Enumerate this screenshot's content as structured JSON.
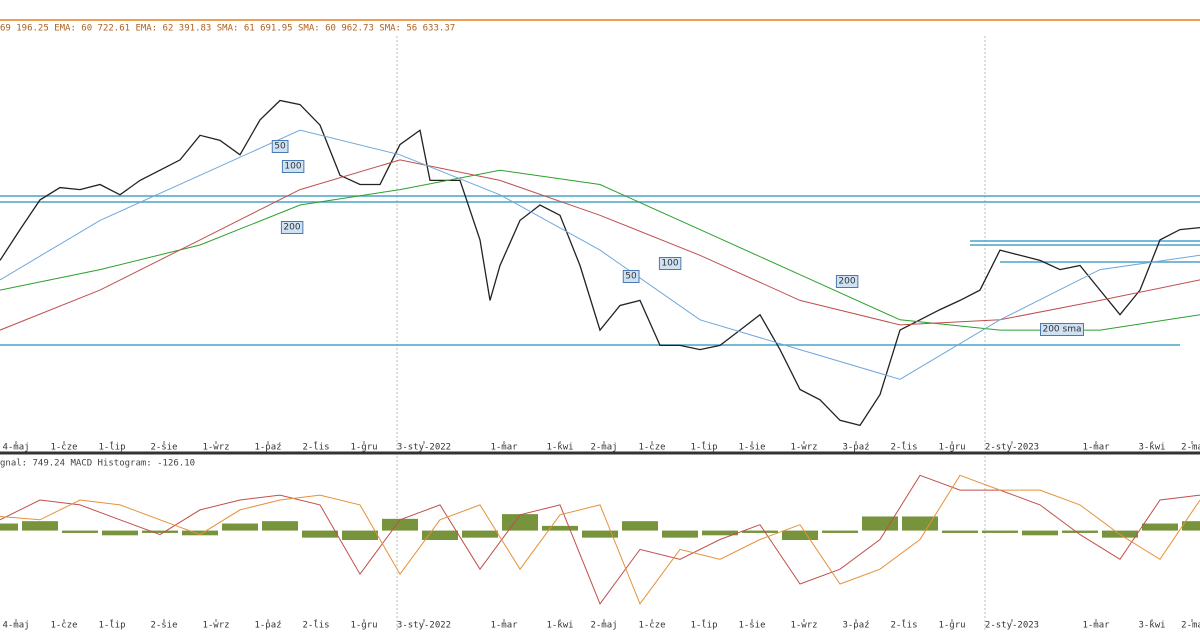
{
  "chart_data": [
    {
      "type": "line",
      "subtitle": "69 196.25 EMA: 60 722.61 EMA: 62 391.83 SMA: 61 691.95 SMA: 60 962.73 SMA: 56 633.37",
      "xlim": [
        0,
        300
      ],
      "ylim": [
        44000,
        84000
      ],
      "xticks": [
        {
          "value": 4,
          "label": "4-maj"
        },
        {
          "value": 16,
          "label": "1-cze"
        },
        {
          "value": 28,
          "label": "1-lip"
        },
        {
          "value": 41,
          "label": "2-sie"
        },
        {
          "value": 54,
          "label": "1-wrz"
        },
        {
          "value": 67,
          "label": "1-paź"
        },
        {
          "value": 79,
          "label": "2-lis"
        },
        {
          "value": 91,
          "label": "1-gru"
        },
        {
          "value": 106,
          "label": "3-sty-2022"
        },
        {
          "value": 126,
          "label": "1-mar"
        },
        {
          "value": 140,
          "label": "1-kwi"
        },
        {
          "value": 151,
          "label": "2-maj"
        },
        {
          "value": 163,
          "label": "1-cze"
        },
        {
          "value": 176,
          "label": "1-lip"
        },
        {
          "value": 188,
          "label": "1-sie"
        },
        {
          "value": 201,
          "label": "1-wrz"
        },
        {
          "value": 214,
          "label": "3-paź"
        },
        {
          "value": 226,
          "label": "2-lis"
        },
        {
          "value": 238,
          "label": "1-gru"
        },
        {
          "value": 253,
          "label": "2-sty-2023"
        },
        {
          "value": 274,
          "label": "1-mar"
        },
        {
          "value": 288,
          "label": "3-kwi"
        },
        {
          "value": 298,
          "label": "2-ma"
        }
      ],
      "series": [
        {
          "name": "Price",
          "color": "#222222",
          "x": [
            0,
            5,
            10,
            15,
            20,
            25,
            30,
            35,
            40,
            45,
            50,
            55,
            60,
            65,
            70,
            75,
            80,
            85,
            90,
            95,
            100,
            105,
            107.5,
            115,
            120,
            122.5,
            125,
            130,
            135,
            140,
            145,
            150,
            155,
            160,
            165,
            170,
            175,
            180,
            185,
            190,
            195,
            200,
            205,
            210,
            215,
            220,
            225,
            230,
            235,
            240,
            245,
            250,
            255,
            260,
            265,
            270,
            275,
            280,
            285,
            290,
            295,
            300
          ],
          "values": [
            62500,
            65500,
            68400,
            69600,
            69400,
            69900,
            68900,
            70300,
            71300,
            72300,
            74700,
            74200,
            72800,
            76200,
            78100,
            77700,
            75700,
            70800,
            69900,
            69900,
            73800,
            75200,
            70300,
            70300,
            64500,
            58600,
            62000,
            66400,
            67900,
            66900,
            62000,
            55700,
            58100,
            58600,
            54200,
            54200,
            53800,
            54200,
            55700,
            57200,
            53800,
            49900,
            48900,
            46900,
            46400,
            49400,
            55700,
            56700,
            57700,
            58600,
            59600,
            63500,
            63000,
            62500,
            61600,
            62000,
            59600,
            57200,
            59600,
            64500,
            65500,
            65700
          ]
        },
        {
          "name": "SMA 200",
          "color": "#2ca02c",
          "x": [
            0,
            25,
            50,
            75,
            100,
            125,
            150,
            175,
            200,
            225,
            250,
            275,
            300
          ],
          "values": [
            59600,
            61600,
            64000,
            67900,
            69400,
            71300,
            69900,
            65500,
            61100,
            56700,
            55700,
            55700,
            57200
          ]
        },
        {
          "name": "EMA 100",
          "color": "#c0504d",
          "x": [
            0,
            25,
            50,
            75,
            100,
            125,
            150,
            175,
            200,
            225,
            250,
            275,
            300
          ],
          "values": [
            55700,
            59600,
            64500,
            69400,
            72300,
            70300,
            66900,
            63000,
            58600,
            56200,
            56700,
            58600,
            60600
          ]
        },
        {
          "name": "SMA 50",
          "color": "#6fa8dc",
          "x": [
            0,
            25,
            50,
            75,
            100,
            125,
            150,
            175,
            200,
            225,
            250,
            275,
            300
          ],
          "values": [
            60600,
            66400,
            70800,
            75200,
            72800,
            68900,
            63500,
            56700,
            53800,
            50900,
            56700,
            61600,
            63000
          ]
        }
      ],
      "levels": [
        68780,
        68200,
        54240,
        64390,
        64000,
        62340
      ],
      "annotations": [
        "50",
        "100",
        "200",
        "50",
        "100",
        "200",
        "200 sma"
      ]
    },
    {
      "type": "macd",
      "subtitle": "gnal: 749.24 MACD Histogram: -126.10",
      "xlim": [
        0,
        300
      ],
      "ylim": [
        -3800,
        3000
      ],
      "x": [
        0,
        10,
        20,
        30,
        40,
        50,
        60,
        70,
        80,
        90,
        100,
        110,
        120,
        130,
        140,
        150,
        160,
        170,
        180,
        190,
        200,
        210,
        220,
        230,
        240,
        250,
        260,
        270,
        280,
        290,
        300
      ],
      "histogram": [
        300,
        400,
        -100,
        -200,
        -100,
        -200,
        300,
        400,
        -300,
        -400,
        500,
        -400,
        -300,
        700,
        200,
        -300,
        400,
        -300,
        -200,
        -100,
        -400,
        -100,
        600,
        600,
        -100,
        -100,
        -200,
        -100,
        -300,
        300,
        400
      ],
      "series": [
        {
          "name": "MACD",
          "color": "#c0504d",
          "values": [
            460,
            1300,
            1090,
            460,
            -170,
            880,
            1300,
            1510,
            1090,
            -1850,
            460,
            1090,
            -1640,
            670,
            1090,
            -3110,
            -800,
            -1220,
            -380,
            250,
            -2270,
            -1640,
            -380,
            2350,
            1720,
            1720,
            1090,
            -170,
            -1220,
            1300,
            1510
          ]
        },
        {
          "name": "Signal",
          "color": "#e69138",
          "values": [
            600,
            460,
            1300,
            1090,
            460,
            -170,
            880,
            1300,
            1510,
            1090,
            -1850,
            460,
            1090,
            -1640,
            670,
            1090,
            -3110,
            -800,
            -1220,
            -380,
            250,
            -2270,
            -1640,
            -380,
            2350,
            1720,
            1720,
            1090,
            -170,
            -1220,
            1300
          ]
        }
      ]
    }
  ]
}
